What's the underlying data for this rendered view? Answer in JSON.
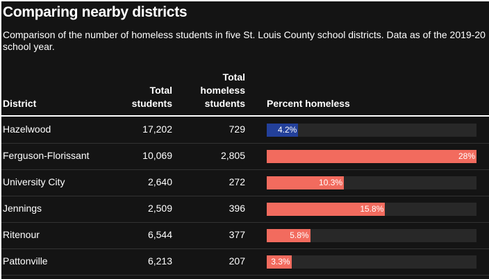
{
  "title": "Comparing nearby districts",
  "subtitle": "Comparison of the number of homeless students in five St. Louis County school districts. Data as of the 2019-20 school year.",
  "chart_data": {
    "type": "table",
    "columns": [
      "District",
      "Total students",
      "Total homeless students",
      "Percent homeless"
    ],
    "rows": [
      {
        "district": "Hazelwood",
        "total": "17,202",
        "homeless": "729",
        "percent": 4.2,
        "percent_label": "4.2%",
        "color": "#23409a"
      },
      {
        "district": "Ferguson-Florissant",
        "total": "10,069",
        "homeless": "2,805",
        "percent": 28,
        "percent_label": "28%",
        "color": "#f26b5e"
      },
      {
        "district": "University City",
        "total": "2,640",
        "homeless": "272",
        "percent": 10.3,
        "percent_label": "10.3%",
        "color": "#f26b5e"
      },
      {
        "district": "Jennings",
        "total": "2,509",
        "homeless": "396",
        "percent": 15.8,
        "percent_label": "15.8%",
        "color": "#f26b5e"
      },
      {
        "district": "Ritenour",
        "total": "6,544",
        "homeless": "377",
        "percent": 5.8,
        "percent_label": "5.8%",
        "color": "#f26b5e"
      },
      {
        "district": "Pattonville",
        "total": "6,213",
        "homeless": "207",
        "percent": 3.3,
        "percent_label": "3.3%",
        "color": "#f26b5e"
      }
    ],
    "bar_max": 28
  },
  "header": {
    "district": "District",
    "total_l1": "Total",
    "total_l2": "students",
    "homeless_l1": "Total",
    "homeless_l2": "homeless",
    "homeless_l3": "students",
    "percent": "Percent homeless"
  }
}
